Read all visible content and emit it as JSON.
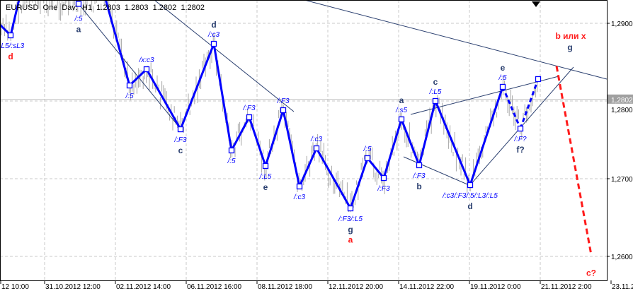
{
  "header": {
    "symbol": "EURUSD",
    "mode": "One Dav: H1",
    "ohlc": [
      "1.2803",
      "1.2803",
      "1.2802",
      "1.2802"
    ]
  },
  "colors": {
    "zigzag": "#0000ff",
    "trend": "#2a3f6f",
    "bars": "#a8a8a8",
    "wave_label": "#2a3f6f",
    "red": "#ff1a1a",
    "grid": "#c8c8c8",
    "price_box": "#a0a0a0"
  },
  "chart_data": {
    "type": "line",
    "symbol": "EURUSD",
    "timeframe": "H1",
    "current_price": 1.2802,
    "current_price_label": "1,2802",
    "y_ticks": [
      "1,2900",
      "1,2800",
      "1,2700",
      "1,2600"
    ],
    "y_tick_values": [
      1.29,
      1.28,
      1.27,
      1.26
    ],
    "ylim": [
      1.257,
      1.293
    ],
    "x_ticks": [
      "12 10:00",
      "31.10.2012 12:00",
      "02.11.2012 14:00",
      "06.11.2012 16:00",
      "08.11.2012 18:00",
      "12.11.2012 20:00",
      "14.11.2012 22:00",
      "19.11.2012 0:00",
      "21.11.2012 2:00",
      "23.11.2"
    ],
    "x_tick_positions": [
      -0.63,
      0,
      1,
      2,
      3,
      4,
      5,
      6,
      7,
      8
    ],
    "grid": true,
    "zigzag": [
      {
        "x": -0.48,
        "y": 1.28845,
        "label": "/:L5/:sL3",
        "wave": "d",
        "wave_color": "red"
      },
      {
        "x": 1.2,
        "y": 1.282,
        "label": "/:5",
        "wave": ""
      },
      {
        "x": 1.44,
        "y": 1.28409,
        "label": "/x:c3",
        "wave": ""
      },
      {
        "x": 1.92,
        "y": 1.27636,
        "label": "/:F3",
        "wave": "c"
      },
      {
        "x": 2.39,
        "y": 1.28736,
        "label": "/:c3",
        "wave": "d"
      },
      {
        "x": 2.64,
        "y": 1.27364,
        "label": "/:5",
        "wave": ""
      },
      {
        "x": 2.89,
        "y": 1.27791,
        "label": "/:F3",
        "wave": ""
      },
      {
        "x": 3.12,
        "y": 1.27164,
        "label": "/:L5",
        "wave": "e"
      },
      {
        "x": 3.37,
        "y": 1.27882,
        "label": "/:F3",
        "wave": ""
      },
      {
        "x": 3.6,
        "y": 1.269,
        "label": "/:c3",
        "wave": ""
      },
      {
        "x": 3.84,
        "y": 1.27391,
        "label": "/:c3",
        "wave": ""
      },
      {
        "x": 4.32,
        "y": 1.26618,
        "label": "/:F3/:L5",
        "wave": "g"
      },
      {
        "x": 4.56,
        "y": 1.27264,
        "label": "/:5",
        "wave": ""
      },
      {
        "x": 4.79,
        "y": 1.27009,
        "label": "/:F3",
        "wave": ""
      },
      {
        "x": 5.04,
        "y": 1.27764,
        "label": "/:s5",
        "wave": "a"
      },
      {
        "x": 5.29,
        "y": 1.27173,
        "label": "/:F3",
        "wave": "b"
      },
      {
        "x": 5.52,
        "y": 1.28,
        "label": "/:L5",
        "wave": "c"
      },
      {
        "x": 6.01,
        "y": 1.26918,
        "label": "/:c3/:F3/:5/:L3/:L5",
        "wave": "d"
      },
      {
        "x": 6.47,
        "y": 1.28182,
        "label": "/:5",
        "wave": "e"
      },
      {
        "x": 6.72,
        "y": 1.27645,
        "label": "/:F?",
        "wave": "f?",
        "dashed": true
      },
      {
        "x": 6.97,
        "y": 1.28282,
        "label": "",
        "wave": "",
        "dashed": true
      }
    ],
    "extra_point": {
      "x": 0.48,
      "y": 1.2925,
      "label": "/:5",
      "wave": "a"
    },
    "annotations": [
      {
        "text": "a",
        "x": 4.32,
        "y": 1.2634,
        "color": "red"
      },
      {
        "text": "b или x",
        "x": 7.43,
        "y": 1.288,
        "color": "red"
      },
      {
        "text": "g",
        "x": 7.42,
        "y": 1.2868,
        "color": "navy"
      },
      {
        "text": "c?",
        "x": 7.72,
        "y": 1.2575,
        "color": "red"
      }
    ],
    "forecast_line": {
      "from": {
        "x": 7.23,
        "y": 1.2845
      },
      "to": {
        "x": 7.72,
        "y": 1.2602
      }
    }
  }
}
